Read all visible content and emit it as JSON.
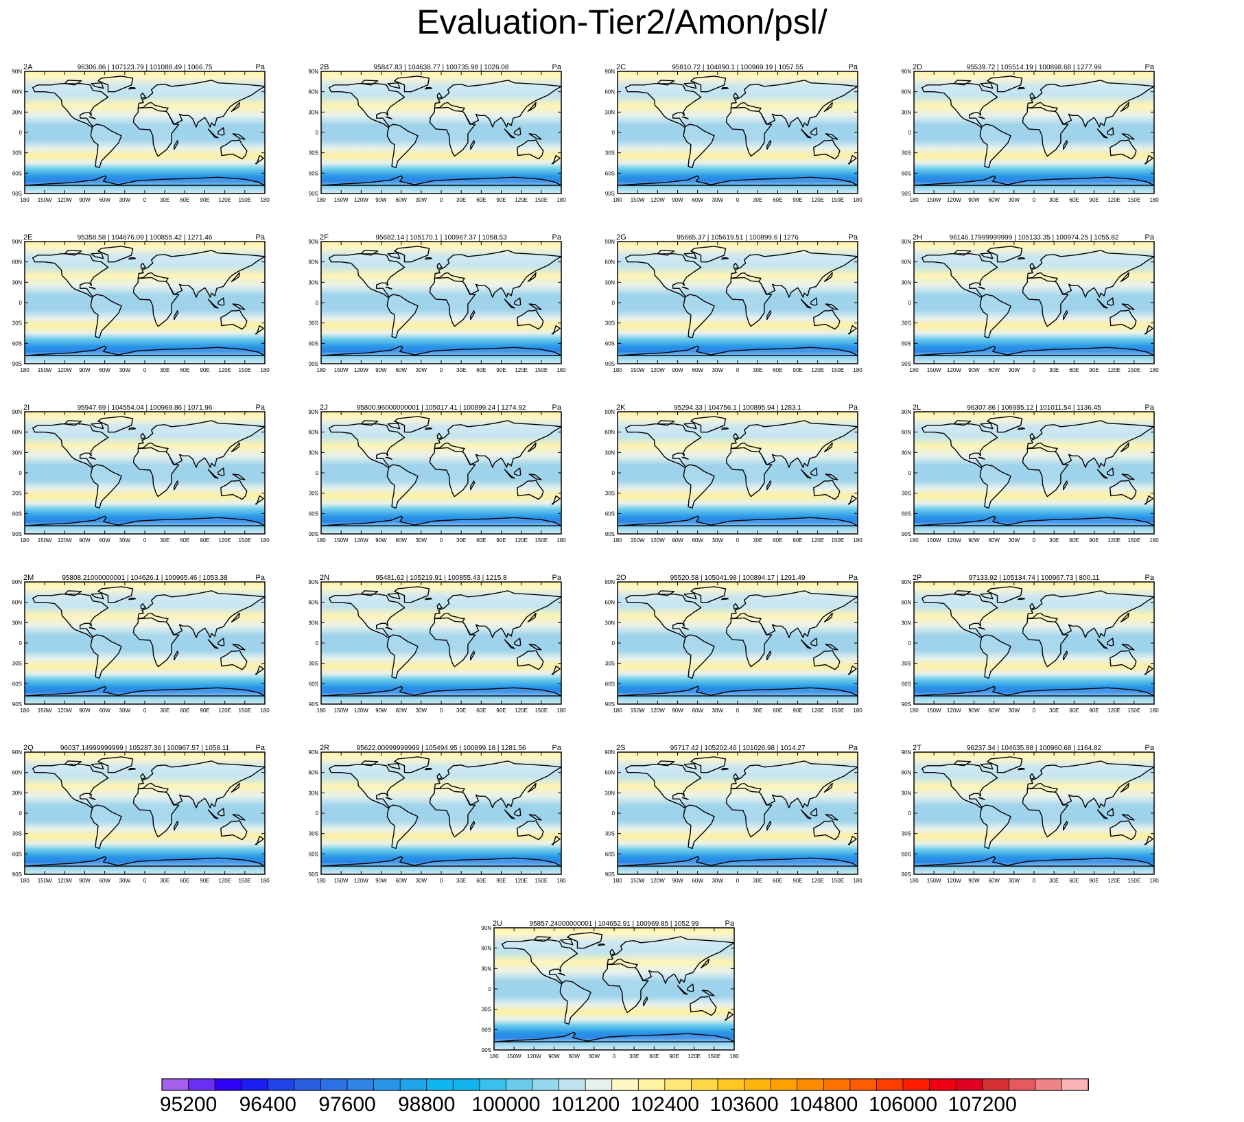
{
  "page": {
    "title": "Evaluation-Tier2/Amon/psl/"
  },
  "chart_data": {
    "type": "heatmap",
    "title": "Evaluation-Tier2/Amon/psl/",
    "units": "Pa",
    "x_ticks": [
      "180",
      "150W",
      "120W",
      "90W",
      "60W",
      "30W",
      "0",
      "30E",
      "60E",
      "90E",
      "120E",
      "150E",
      "180"
    ],
    "y_ticks": [
      "90N",
      "60N",
      "30N",
      "0",
      "30S",
      "60S",
      "90S"
    ],
    "colorbar": {
      "tick_labels": [
        "95200",
        "96400",
        "97600",
        "98800",
        "100000",
        "101200",
        "102400",
        "103600",
        "104800",
        "106000",
        "107200"
      ],
      "colors": [
        "#a45fed",
        "#6a2ff2",
        "#2f00f6",
        "#1b1df1",
        "#1f44e7",
        "#2a5fe2",
        "#2c72e4",
        "#2d84e6",
        "#2896e8",
        "#1ea6ec",
        "#0fb6f0",
        "#0fb4ec",
        "#38c1ee",
        "#6acbeb",
        "#95d7ee",
        "#bfe3ef",
        "#e7f1ec",
        "#fff8c4",
        "#fff2a0",
        "#ffe676",
        "#ffd848",
        "#ffc71f",
        "#ffb40d",
        "#ffa000",
        "#ff8c00",
        "#ff7400",
        "#ff5b00",
        "#ff3d00",
        "#ff1c00",
        "#f00010",
        "#e00020",
        "#d63035",
        "#e45a5e",
        "#ef8488",
        "#f9b4b8"
      ]
    },
    "panels": [
      {
        "id": "2A",
        "stats": "96306.86 | 107123.79 | 101088.49 | 1066.75",
        "unit": "Pa"
      },
      {
        "id": "2B",
        "stats": "95847.83 | 104638.77 | 100735.98 | 1026.08",
        "unit": "Pa"
      },
      {
        "id": "2C",
        "stats": "95810.72 | 104890.1 | 100969.19 | 1057.55",
        "unit": "Pa"
      },
      {
        "id": "2D",
        "stats": "95539.72 | 105514.19 | 100898.68 | 1277.99",
        "unit": "Pa"
      },
      {
        "id": "2E",
        "stats": "95358.58 | 104676.09 | 100855.42 | 1271.46",
        "unit": "Pa"
      },
      {
        "id": "2F",
        "stats": "95682.14 | 105170.1 | 100967.37 | 1058.53",
        "unit": "Pa"
      },
      {
        "id": "2G",
        "stats": "95665.37 | 105619.51 | 100899.6 | 1276",
        "unit": "Pa"
      },
      {
        "id": "2H",
        "stats": "96146.17999999999 | 105133.35 | 100974.25 | 1055.82",
        "unit": "Pa"
      },
      {
        "id": "2I",
        "stats": "95947.69 | 104554.04 | 100969.86 | 1071.96",
        "unit": "Pa"
      },
      {
        "id": "2J",
        "stats": "95800.96000000001 | 105017.41 | 100899.24 | 1274.92",
        "unit": "Pa"
      },
      {
        "id": "2K",
        "stats": "95294.33 | 104756.1 | 100895.94 | 1283.1",
        "unit": "Pa"
      },
      {
        "id": "2L",
        "stats": "96307.86 | 106985.12 | 101011.54 | 1136.45",
        "unit": "Pa"
      },
      {
        "id": "2M",
        "stats": "95808.21000000001 | 104626.1 | 100965.46 | 1053.38",
        "unit": "Pa"
      },
      {
        "id": "2N",
        "stats": "95481.62 | 105219.91 | 100855.43 | 1215.8",
        "unit": "Pa"
      },
      {
        "id": "2O",
        "stats": "95520.58 | 105041.98 | 100894.17 | 1291.49",
        "unit": "Pa"
      },
      {
        "id": "2P",
        "stats": "97133.92 | 105134.74 | 100967.73 | 800.11",
        "unit": "Pa"
      },
      {
        "id": "2Q",
        "stats": "96037.14999999999 | 105287.36 | 100967.57 | 1058.11",
        "unit": "Pa"
      },
      {
        "id": "2R",
        "stats": "95622.00999999999 | 105494.95 | 100899.18 | 1281.56",
        "unit": "Pa"
      },
      {
        "id": "2S",
        "stats": "95717.42 | 105202.46 | 101026.98 | 1014.27",
        "unit": "Pa"
      },
      {
        "id": "2T",
        "stats": "96237.34 | 104635.88 | 100960.68 | 1164.82",
        "unit": "Pa"
      },
      {
        "id": "2U",
        "stats": "95857.24000000001 | 104652.91 | 100969.85 | 1052.99",
        "unit": "Pa"
      }
    ]
  }
}
